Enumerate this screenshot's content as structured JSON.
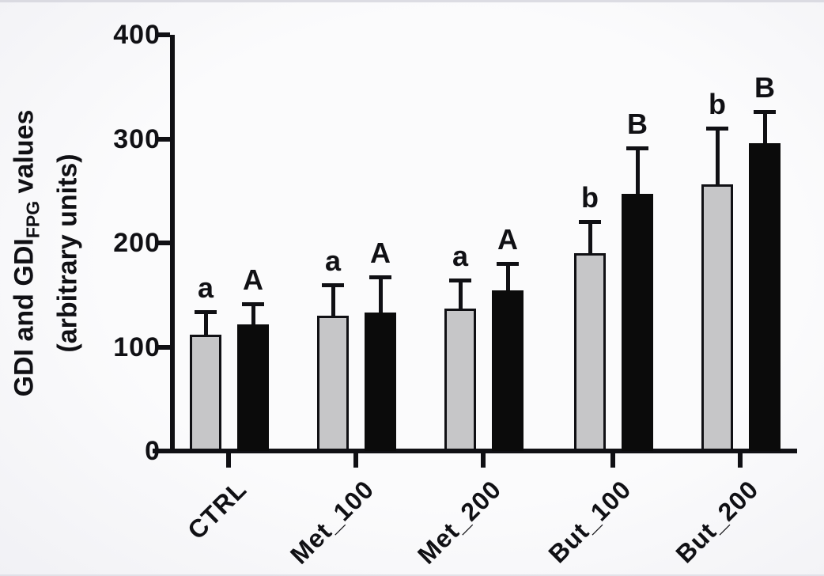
{
  "figure": {
    "background": "#f6f6f8",
    "axis_color": "#101014",
    "gray_bar_fill": "#c6c6c8",
    "black_bar_fill": "#0b0b0b"
  },
  "chart_data": {
    "type": "bar",
    "title": "",
    "xlabel": "",
    "ylabel": {
      "full": "GDI and GDI_FPG values (arbitrary units)",
      "main": "GDI and GDI",
      "sub": "FPG",
      "rest": " values",
      "line2": "(arbitrary units)"
    },
    "ylim": [
      0,
      400
    ],
    "yticks": [
      0,
      100,
      200,
      300,
      400
    ],
    "grid": false,
    "legend": "none",
    "categories": [
      "CTRL",
      "Met_100",
      "Met_200",
      "But_100",
      "But_200"
    ],
    "series": [
      {
        "name": "GDI",
        "color": "#c6c6c8",
        "values": [
          112,
          130,
          137,
          190,
          256
        ],
        "errors_plus": [
          23,
          31,
          29,
          32,
          56
        ],
        "labels": [
          "a",
          "a",
          "a",
          "b",
          "b"
        ]
      },
      {
        "name": "GDI_FPG",
        "color": "#0b0b0b",
        "values": [
          122,
          133,
          154,
          247,
          296
        ],
        "errors_plus": [
          21,
          36,
          28,
          46,
          32
        ],
        "labels": [
          "A",
          "A",
          "A",
          "B",
          "B"
        ]
      }
    ]
  }
}
